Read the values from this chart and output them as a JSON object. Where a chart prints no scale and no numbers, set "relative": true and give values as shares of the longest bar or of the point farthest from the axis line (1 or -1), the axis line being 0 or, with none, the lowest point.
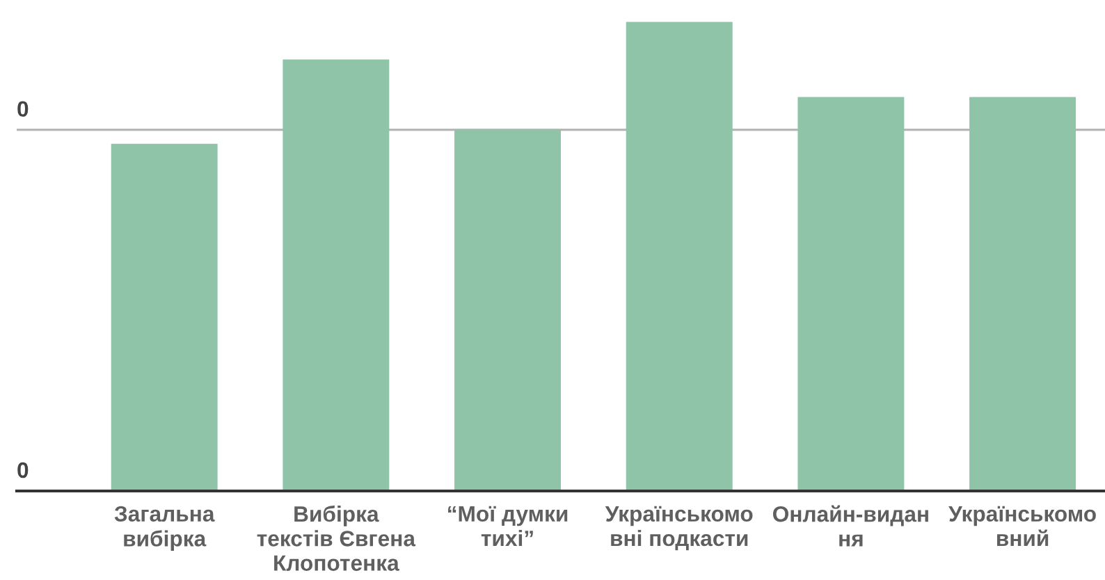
{
  "chart_data": {
    "type": "bar",
    "relative": true,
    "categories": [
      "Загальна\nвибірка",
      "Вибірка\nтекстів Євгена\nКлопотенка",
      "“Мої думки\nтихі”",
      "Українськомо\nвні подкасти",
      "Онлайн-видан\nня",
      "Українськомо\nвний"
    ],
    "values": [
      0.74,
      0.92,
      0.77,
      1,
      0.84,
      0.84
    ],
    "color": "#8fc4a8",
    "ref_lines": [
      {
        "axis": "y",
        "value": 0.77,
        "color": "#b7b7b7"
      }
    ],
    "annotations": [
      {
        "text": "0",
        "y": 0.77
      },
      "0"
    ]
  }
}
